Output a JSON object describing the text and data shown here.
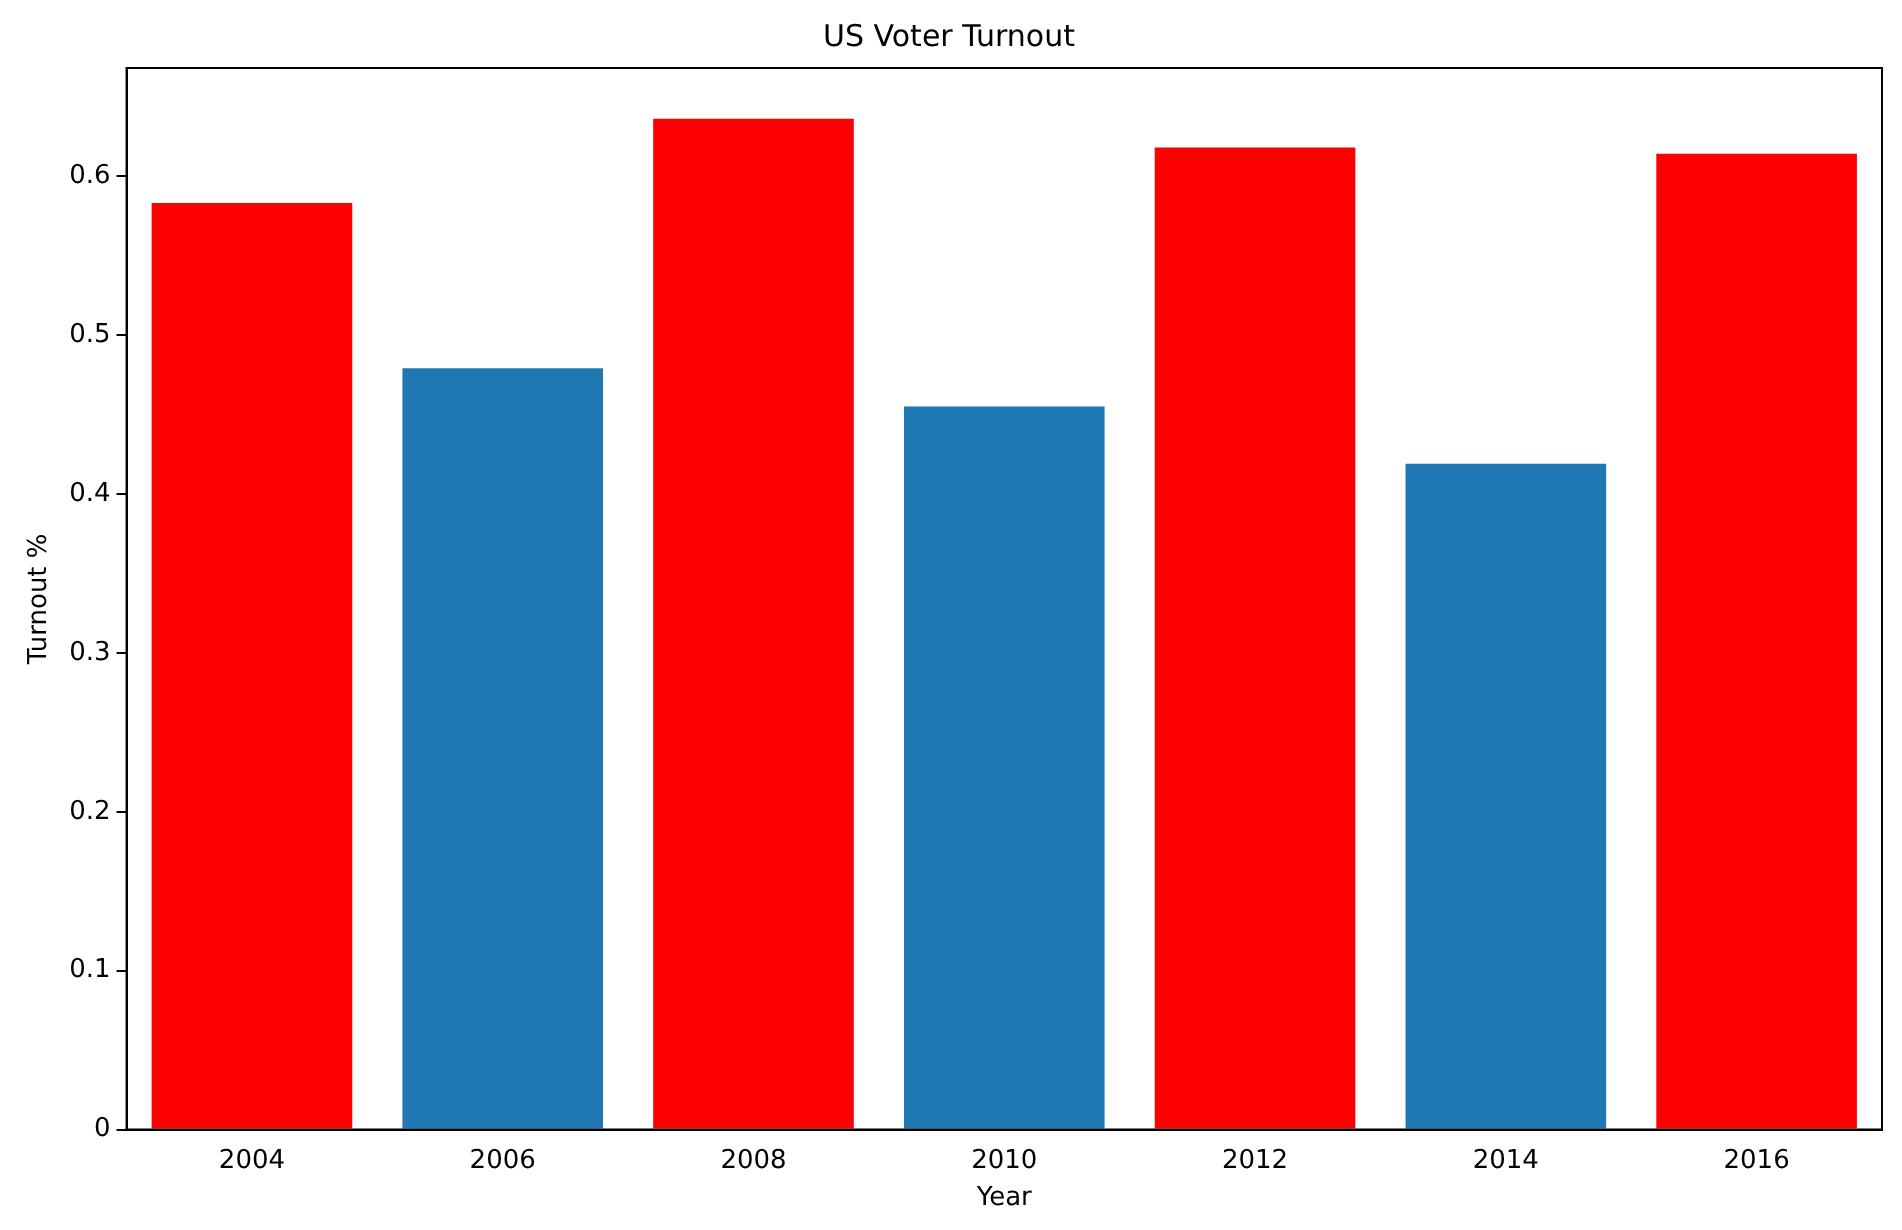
{
  "chart_data": {
    "type": "bar",
    "title": "US Voter Turnout",
    "xlabel": "Year",
    "ylabel": "Turnout %",
    "categories": [
      "2004",
      "2006",
      "2008",
      "2010",
      "2012",
      "2014",
      "2016"
    ],
    "values": [
      0.583,
      0.479,
      0.636,
      0.455,
      0.618,
      0.419,
      0.614
    ],
    "colors": [
      "#ff0000",
      "#1f77b4",
      "#ff0000",
      "#1f77b4",
      "#ff0000",
      "#1f77b4",
      "#ff0000"
    ],
    "ylim": [
      0,
      0.668
    ],
    "yticks": [
      0,
      0.1,
      0.2,
      0.3,
      0.4,
      0.5,
      0.6
    ],
    "grid": false,
    "legend": false
  }
}
